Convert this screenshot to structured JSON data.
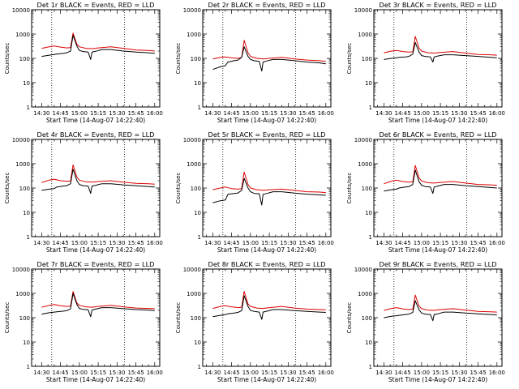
{
  "chart_data": [
    {
      "type": "line",
      "title": "Det 1r BLACK = Events, RED = LLD",
      "series": [
        {
          "color": "#000000",
          "x": [
            "14:30",
            "14:36",
            "14:40",
            "14:42",
            "14:47",
            "14:50",
            "14:53",
            "14:55",
            "14:58",
            "15:00",
            "15:03",
            "15:07",
            "15:09",
            "15:10",
            "15:13",
            "15:18",
            "15:25",
            "15:35",
            "15:45",
            "15:55",
            "16:00"
          ],
          "values": [
            120,
            135,
            145,
            150,
            160,
            170,
            200,
            900,
            320,
            210,
            190,
            180,
            90,
            180,
            195,
            230,
            230,
            200,
            180,
            170,
            160
          ]
        },
        {
          "color": "#dd0000",
          "x": [
            "14:30",
            "14:36",
            "14:40",
            "14:45",
            "14:50",
            "14:53",
            "14:55",
            "14:58",
            "15:00",
            "15:05",
            "15:10",
            "15:15",
            "15:25",
            "15:35",
            "15:45",
            "15:55",
            "16:00"
          ],
          "values": [
            260,
            300,
            320,
            290,
            270,
            280,
            1100,
            380,
            300,
            260,
            250,
            270,
            300,
            260,
            220,
            210,
            200
          ]
        }
      ]
    },
    {
      "type": "line",
      "title": "Det 2r BLACK = Events, RED = LLD",
      "series": [
        {
          "color": "#000000",
          "x": [
            "14:30",
            "14:36",
            "14:40",
            "14:42",
            "14:47",
            "14:50",
            "14:53",
            "14:55",
            "14:58",
            "15:00",
            "15:03",
            "15:07",
            "15:09",
            "15:10",
            "15:13",
            "15:18",
            "15:25",
            "15:35",
            "15:45",
            "15:55",
            "16:00"
          ],
          "values": [
            35,
            45,
            50,
            70,
            80,
            85,
            110,
            300,
            120,
            90,
            80,
            75,
            30,
            70,
            78,
            90,
            90,
            80,
            70,
            65,
            60
          ]
        },
        {
          "color": "#dd0000",
          "x": [
            "14:30",
            "14:36",
            "14:40",
            "14:45",
            "14:50",
            "14:53",
            "14:55",
            "14:58",
            "15:00",
            "15:05",
            "15:10",
            "15:15",
            "15:25",
            "15:35",
            "15:45",
            "15:55",
            "16:00"
          ],
          "values": [
            95,
            110,
            115,
            105,
            100,
            110,
            550,
            170,
            120,
            100,
            95,
            100,
            110,
            95,
            85,
            80,
            75
          ]
        }
      ]
    },
    {
      "type": "line",
      "title": "Det 3r BLACK = Events, RED = LLD",
      "series": [
        {
          "color": "#000000",
          "x": [
            "14:30",
            "14:36",
            "14:40",
            "14:42",
            "14:47",
            "14:50",
            "14:53",
            "14:55",
            "14:58",
            "15:00",
            "15:03",
            "15:07",
            "15:09",
            "15:10",
            "15:13",
            "15:18",
            "15:25",
            "15:35",
            "15:45",
            "15:55",
            "16:00"
          ],
          "values": [
            90,
            100,
            105,
            110,
            115,
            120,
            150,
            450,
            180,
            130,
            120,
            115,
            70,
            115,
            125,
            140,
            140,
            130,
            120,
            110,
            105
          ]
        },
        {
          "color": "#dd0000",
          "x": [
            "14:30",
            "14:36",
            "14:40",
            "14:45",
            "14:50",
            "14:53",
            "14:55",
            "14:58",
            "15:00",
            "15:05",
            "15:10",
            "15:15",
            "15:25",
            "15:35",
            "15:45",
            "15:55",
            "16:00"
          ],
          "values": [
            170,
            200,
            210,
            190,
            180,
            185,
            800,
            260,
            200,
            170,
            165,
            175,
            190,
            165,
            145,
            140,
            135
          ]
        }
      ]
    },
    {
      "type": "line",
      "title": "Det 4r BLACK = Events, RED = LLD",
      "series": [
        {
          "color": "#000000",
          "x": [
            "14:30",
            "14:36",
            "14:40",
            "14:42",
            "14:47",
            "14:50",
            "14:53",
            "14:55",
            "14:58",
            "15:00",
            "15:03",
            "15:07",
            "15:09",
            "15:10",
            "15:13",
            "15:18",
            "15:25",
            "15:35",
            "15:45",
            "15:55",
            "16:00"
          ],
          "values": [
            80,
            90,
            95,
            110,
            120,
            125,
            150,
            600,
            200,
            140,
            125,
            120,
            60,
            120,
            130,
            150,
            150,
            135,
            125,
            115,
            110
          ]
        },
        {
          "color": "#dd0000",
          "x": [
            "14:30",
            "14:36",
            "14:40",
            "14:45",
            "14:50",
            "14:53",
            "14:55",
            "14:58",
            "15:00",
            "15:05",
            "15:10",
            "15:15",
            "15:25",
            "15:35",
            "15:45",
            "15:55",
            "16:00"
          ],
          "values": [
            170,
            210,
            230,
            200,
            190,
            195,
            900,
            280,
            210,
            180,
            175,
            185,
            200,
            175,
            155,
            150,
            145
          ]
        }
      ]
    },
    {
      "type": "line",
      "title": "Det 5r BLACK = Events, RED = LLD",
      "series": [
        {
          "color": "#000000",
          "x": [
            "14:30",
            "14:36",
            "14:40",
            "14:42",
            "14:47",
            "14:50",
            "14:53",
            "14:55",
            "14:58",
            "15:00",
            "15:03",
            "15:07",
            "15:09",
            "15:10",
            "15:13",
            "15:18",
            "15:25",
            "15:35",
            "15:45",
            "15:55",
            "16:00"
          ],
          "values": [
            25,
            30,
            32,
            55,
            60,
            62,
            80,
            250,
            100,
            70,
            60,
            58,
            20,
            55,
            60,
            70,
            70,
            62,
            56,
            52,
            50
          ]
        },
        {
          "color": "#dd0000",
          "x": [
            "14:30",
            "14:36",
            "14:40",
            "14:45",
            "14:50",
            "14:53",
            "14:55",
            "14:58",
            "15:00",
            "15:05",
            "15:10",
            "15:15",
            "15:25",
            "15:35",
            "15:45",
            "15:55",
            "16:00"
          ],
          "values": [
            85,
            100,
            110,
            95,
            90,
            95,
            450,
            140,
            100,
            85,
            80,
            85,
            90,
            80,
            70,
            68,
            65
          ]
        }
      ]
    },
    {
      "type": "line",
      "title": "Det 6r BLACK = Events, RED = LLD",
      "series": [
        {
          "color": "#000000",
          "x": [
            "14:30",
            "14:36",
            "14:40",
            "14:42",
            "14:47",
            "14:50",
            "14:53",
            "14:55",
            "14:58",
            "15:00",
            "15:03",
            "15:07",
            "15:09",
            "15:10",
            "15:13",
            "15:18",
            "15:25",
            "15:35",
            "15:45",
            "15:55",
            "16:00"
          ],
          "values": [
            75,
            85,
            90,
            100,
            110,
            115,
            140,
            550,
            180,
            130,
            115,
            110,
            60,
            110,
            120,
            140,
            140,
            125,
            115,
            105,
            100
          ]
        },
        {
          "color": "#dd0000",
          "x": [
            "14:30",
            "14:36",
            "14:40",
            "14:45",
            "14:50",
            "14:53",
            "14:55",
            "14:58",
            "15:00",
            "15:05",
            "15:10",
            "15:15",
            "15:25",
            "15:35",
            "15:45",
            "15:55",
            "16:00"
          ],
          "values": [
            150,
            190,
            210,
            185,
            175,
            180,
            850,
            260,
            195,
            165,
            160,
            170,
            185,
            160,
            140,
            135,
            130
          ]
        }
      ]
    },
    {
      "type": "line",
      "title": "Det 7r BLACK = Events, RED = LLD",
      "series": [
        {
          "color": "#000000",
          "x": [
            "14:30",
            "14:36",
            "14:40",
            "14:42",
            "14:47",
            "14:50",
            "14:53",
            "14:55",
            "14:58",
            "15:00",
            "15:03",
            "15:07",
            "15:09",
            "15:10",
            "15:13",
            "15:18",
            "15:25",
            "15:35",
            "15:45",
            "15:55",
            "16:00"
          ],
          "values": [
            140,
            160,
            170,
            175,
            185,
            195,
            230,
            1000,
            350,
            240,
            220,
            210,
            110,
            205,
            225,
            260,
            260,
            235,
            215,
            205,
            195
          ]
        },
        {
          "color": "#dd0000",
          "x": [
            "14:30",
            "14:36",
            "14:40",
            "14:45",
            "14:50",
            "14:53",
            "14:55",
            "14:58",
            "15:00",
            "15:05",
            "15:10",
            "15:15",
            "15:25",
            "15:35",
            "15:45",
            "15:55",
            "16:00"
          ],
          "values": [
            270,
            320,
            350,
            310,
            290,
            300,
            1200,
            400,
            320,
            280,
            270,
            290,
            320,
            280,
            250,
            240,
            235
          ]
        }
      ]
    },
    {
      "type": "line",
      "title": "Det 8r BLACK = Events, RED = LLD",
      "series": [
        {
          "color": "#000000",
          "x": [
            "14:30",
            "14:36",
            "14:40",
            "14:42",
            "14:47",
            "14:50",
            "14:53",
            "14:55",
            "14:58",
            "15:00",
            "15:03",
            "15:07",
            "15:09",
            "15:10",
            "15:13",
            "15:18",
            "15:25",
            "15:35",
            "15:45",
            "15:55",
            "16:00"
          ],
          "values": [
            110,
            125,
            135,
            145,
            155,
            165,
            195,
            800,
            290,
            200,
            180,
            170,
            85,
            170,
            185,
            215,
            215,
            195,
            180,
            170,
            165
          ]
        },
        {
          "color": "#dd0000",
          "x": [
            "14:30",
            "14:36",
            "14:40",
            "14:45",
            "14:50",
            "14:53",
            "14:55",
            "14:58",
            "15:00",
            "15:05",
            "15:10",
            "15:15",
            "15:25",
            "15:35",
            "15:45",
            "15:55",
            "16:00"
          ],
          "values": [
            240,
            290,
            310,
            280,
            260,
            270,
            1200,
            370,
            290,
            250,
            240,
            260,
            290,
            250,
            225,
            215,
            210
          ]
        }
      ]
    },
    {
      "type": "line",
      "title": "Det 9r BLACK = Events, RED = LLD",
      "series": [
        {
          "color": "#000000",
          "x": [
            "14:30",
            "14:36",
            "14:40",
            "14:42",
            "14:47",
            "14:50",
            "14:53",
            "14:55",
            "14:58",
            "15:00",
            "15:03",
            "15:07",
            "15:09",
            "15:10",
            "15:13",
            "15:18",
            "15:25",
            "15:35",
            "15:45",
            "15:55",
            "16:00"
          ],
          "values": [
            100,
            115,
            120,
            125,
            135,
            140,
            165,
            500,
            210,
            155,
            140,
            135,
            75,
            135,
            145,
            170,
            170,
            155,
            145,
            135,
            130
          ]
        },
        {
          "color": "#dd0000",
          "x": [
            "14:30",
            "14:36",
            "14:40",
            "14:45",
            "14:50",
            "14:53",
            "14:55",
            "14:58",
            "15:00",
            "15:05",
            "15:10",
            "15:15",
            "15:25",
            "15:35",
            "15:45",
            "15:55",
            "16:00"
          ],
          "values": [
            200,
            240,
            260,
            230,
            215,
            225,
            850,
            300,
            235,
            205,
            200,
            215,
            235,
            205,
            180,
            175,
            170
          ]
        }
      ]
    }
  ],
  "shared": {
    "xlabel": "Start Time (14-Aug-07 14:22:40)",
    "ylabel": "Counts/sec",
    "ylim": [
      1,
      10000
    ],
    "y_scale": "log",
    "y_ticks": [
      1,
      10,
      100,
      1000,
      10000
    ],
    "y_tick_labels": [
      "1",
      "10",
      "100",
      "1000",
      "10000"
    ],
    "xlim": [
      "14:22",
      "16:04"
    ],
    "x_ticks": [
      "14:30",
      "14:45",
      "15:00",
      "15:15",
      "15:30",
      "15:45",
      "16:00"
    ],
    "x_tick_labels": [
      "14:30",
      "14:45",
      "15:00",
      "15:15",
      "15:30",
      "15:45",
      "16:00"
    ],
    "dotted_vlines": [
      "14:38",
      "15:36"
    ],
    "grid": false
  }
}
